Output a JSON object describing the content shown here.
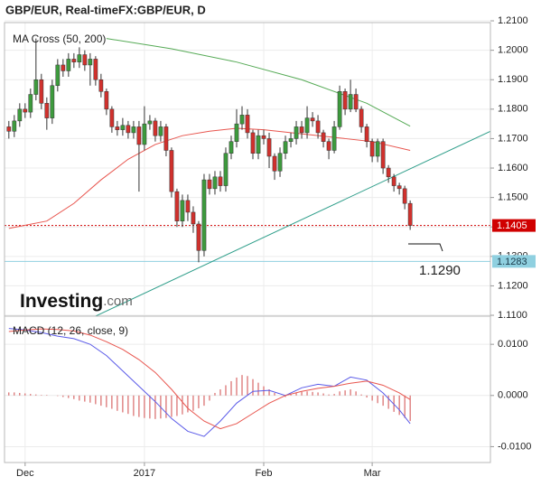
{
  "header": {
    "title": "GBP/EUR, Real-timeFX:GBP/EUR, D",
    "logo": [
      "Investing",
      ".com"
    ]
  },
  "chart_data": [
    {
      "type": "candlestick",
      "title": "MA Cross (50, 200)",
      "up_color": "#3d9a3d",
      "down_color": "#d0312d",
      "xlim": [
        -0.8,
        88.8
      ],
      "ylim": [
        1.1097,
        1.2094
      ],
      "yticks": [
        {
          "value": 1.11,
          "label": "1.1100"
        },
        {
          "value": 1.12,
          "label": "1.1200"
        },
        {
          "value": 1.13,
          "label": "1.1300"
        },
        {
          "value": 1.14,
          "label": "1.1400"
        },
        {
          "value": 1.15,
          "label": "1.1500"
        },
        {
          "value": 1.16,
          "label": "1.1600"
        },
        {
          "value": 1.17,
          "label": "1.1700"
        },
        {
          "value": 1.18,
          "label": "1.1800"
        },
        {
          "value": 1.19,
          "label": "1.1900"
        },
        {
          "value": 1.2,
          "label": "1.2000"
        },
        {
          "value": 1.21,
          "label": "1.2100"
        }
      ],
      "grid": true,
      "x": [
        0,
        1,
        2,
        3,
        4,
        5,
        6,
        7,
        8,
        9,
        10,
        11,
        12,
        13,
        14,
        15,
        16,
        17,
        18,
        19,
        20,
        21,
        22,
        23,
        24,
        25,
        26,
        27,
        28,
        29,
        30,
        31,
        32,
        33,
        34,
        35,
        36,
        37,
        38,
        39,
        40,
        41,
        42,
        43,
        44,
        45,
        46,
        47,
        48,
        49,
        50,
        51,
        52,
        53,
        54,
        55,
        56,
        57,
        58,
        59,
        60,
        61,
        62,
        63,
        64,
        65,
        66,
        67,
        68,
        69,
        70,
        71,
        72,
        73,
        74
      ],
      "open": [
        1.174,
        1.1725,
        1.176,
        1.18,
        1.179,
        1.185,
        1.19,
        1.182,
        1.177,
        1.188,
        1.195,
        1.193,
        1.197,
        1.196,
        1.1985,
        1.195,
        1.197,
        1.19,
        1.186,
        1.18,
        1.174,
        1.173,
        1.1745,
        1.172,
        1.174,
        1.168,
        1.175,
        1.176,
        1.171,
        1.174,
        1.166,
        1.152,
        1.142,
        1.149,
        1.145,
        1.141,
        1.132,
        1.156,
        1.153,
        1.157,
        1.154,
        1.165,
        1.169,
        1.175,
        1.178,
        1.172,
        1.165,
        1.171,
        1.17,
        1.164,
        1.159,
        1.165,
        1.169,
        1.17,
        1.174,
        1.172,
        1.177,
        1.176,
        1.172,
        1.169,
        1.166,
        1.174,
        1.186,
        1.18,
        1.185,
        1.18,
        1.174,
        1.169,
        1.164,
        1.169,
        1.16,
        1.157,
        1.154,
        1.153,
        1.148
      ],
      "high": [
        1.176,
        1.178,
        1.182,
        1.182,
        1.187,
        1.204,
        1.192,
        1.184,
        1.19,
        1.197,
        1.197,
        1.199,
        1.199,
        1.201,
        1.2,
        1.199,
        1.198,
        1.192,
        1.187,
        1.181,
        1.176,
        1.177,
        1.176,
        1.176,
        1.176,
        1.181,
        1.178,
        1.177,
        1.176,
        1.175,
        1.167,
        1.153,
        1.151,
        1.151,
        1.147,
        1.142,
        1.158,
        1.158,
        1.159,
        1.159,
        1.167,
        1.171,
        1.18,
        1.181,
        1.18,
        1.173,
        1.173,
        1.173,
        1.172,
        1.165,
        1.167,
        1.171,
        1.172,
        1.176,
        1.176,
        1.181,
        1.179,
        1.178,
        1.173,
        1.17,
        1.176,
        1.188,
        1.187,
        1.19,
        1.187,
        1.181,
        1.175,
        1.17,
        1.17,
        1.17,
        1.161,
        1.158,
        1.155,
        1.154,
        1.149
      ],
      "low": [
        1.17,
        1.1705,
        1.174,
        1.177,
        1.177,
        1.183,
        1.18,
        1.173,
        1.175,
        1.186,
        1.191,
        1.191,
        1.194,
        1.194,
        1.193,
        1.188,
        1.188,
        1.184,
        1.178,
        1.172,
        1.171,
        1.171,
        1.17,
        1.17,
        1.152,
        1.166,
        1.173,
        1.169,
        1.169,
        1.164,
        1.15,
        1.14,
        1.14,
        1.142,
        1.138,
        1.128,
        1.13,
        1.151,
        1.151,
        1.152,
        1.152,
        1.163,
        1.167,
        1.173,
        1.17,
        1.163,
        1.163,
        1.168,
        1.16,
        1.156,
        1.157,
        1.163,
        1.167,
        1.168,
        1.17,
        1.17,
        1.174,
        1.17,
        1.167,
        1.163,
        1.165,
        1.173,
        1.178,
        1.179,
        1.179,
        1.172,
        1.167,
        1.162,
        1.162,
        1.158,
        1.155,
        1.152,
        1.151,
        1.146,
        1.139
      ],
      "close": [
        1.1725,
        1.176,
        1.18,
        1.179,
        1.185,
        1.19,
        1.182,
        1.177,
        1.188,
        1.195,
        1.193,
        1.197,
        1.196,
        1.1985,
        1.195,
        1.197,
        1.19,
        1.186,
        1.18,
        1.174,
        1.173,
        1.1745,
        1.172,
        1.174,
        1.168,
        1.175,
        1.176,
        1.171,
        1.174,
        1.166,
        1.152,
        1.142,
        1.149,
        1.145,
        1.141,
        1.132,
        1.156,
        1.153,
        1.157,
        1.154,
        1.165,
        1.169,
        1.175,
        1.178,
        1.172,
        1.165,
        1.171,
        1.17,
        1.164,
        1.159,
        1.165,
        1.169,
        1.17,
        1.174,
        1.172,
        1.177,
        1.176,
        1.172,
        1.169,
        1.166,
        1.174,
        1.186,
        1.18,
        1.185,
        1.18,
        1.174,
        1.169,
        1.164,
        1.169,
        1.16,
        1.157,
        1.154,
        1.153,
        1.148,
        1.1405
      ],
      "overlays": [
        {
          "color": "#e8554e",
          "x": [
            0,
            7,
            12,
            17,
            22,
            27,
            32,
            37,
            42,
            47,
            52,
            57,
            62,
            67,
            74
          ],
          "values": [
            1.1395,
            1.142,
            1.148,
            1.156,
            1.163,
            1.168,
            1.171,
            1.1725,
            1.1735,
            1.173,
            1.172,
            1.171,
            1.17,
            1.169,
            1.166
          ]
        },
        {
          "color": "#55aa55",
          "x": [
            18,
            30,
            42,
            54,
            66,
            74
          ],
          "values": [
            1.204,
            1.2005,
            1.196,
            1.19,
            1.182,
            1.1742
          ]
        },
        {
          "color": "#2e9e8a",
          "x": [
            14,
            88.8
          ],
          "values": [
            1.108,
            1.1725
          ]
        }
      ],
      "hlines": [
        {
          "value": 1.1405,
          "color": "#d00000",
          "dash": "2,2",
          "label_color": "#ffffff"
        },
        {
          "value": 1.1283,
          "color": "#8fd0e0",
          "dash": "",
          "label_color": "#1a3a4a"
        }
      ],
      "annotations": [
        {
          "text": "1.1290"
        }
      ]
    },
    {
      "type": "macd",
      "title": "MACD (12, 26, close, 9)",
      "xlim": [
        -0.8,
        88.8
      ],
      "ylim": [
        -0.0131,
        0.0155
      ],
      "yticks": [
        {
          "value": 0.01,
          "label": "0.0100"
        },
        {
          "value": 0,
          "label": "0.0000"
        },
        {
          "value": -0.01,
          "label": "-0.0100"
        }
      ],
      "xticks": [
        {
          "value": 3,
          "label": "Dec"
        },
        {
          "value": 25,
          "label": "2017"
        },
        {
          "value": 47,
          "label": "Feb"
        },
        {
          "value": 67,
          "label": "Mar"
        }
      ],
      "histogram": {
        "color": "#d04a4a",
        "values": [
          0.0006,
          0.0006,
          0.0005,
          0.0004,
          0.0003,
          0.0002,
          0.0001,
          0.0001,
          0,
          -0.0001,
          -0.0003,
          -0.0005,
          -0.0007,
          -0.001,
          -0.0012,
          -0.0014,
          -0.0017,
          -0.002,
          -0.0023,
          -0.0026,
          -0.003,
          -0.0033,
          -0.0036,
          -0.004,
          -0.0042,
          -0.0044,
          -0.0045,
          -0.0046,
          -0.0045,
          -0.0044,
          -0.0042,
          -0.004,
          -0.0037,
          -0.0033,
          -0.003,
          -0.0025,
          -0.002,
          -0.001,
          0.0005,
          0.0012,
          0.002,
          0.0028,
          0.0035,
          0.004,
          0.0038,
          0.0032,
          0.0025,
          0.0018,
          0.0012,
          0.0005,
          0,
          -0.0003,
          0.0002,
          0.0005,
          0.0007,
          0.0008,
          0.0007,
          0.0006,
          0.0004,
          0.0002,
          0.0003,
          0.0008,
          0.001,
          0.0012,
          0.0008,
          0.0002,
          -0.0004,
          -0.001,
          -0.0015,
          -0.002,
          -0.0026,
          -0.0032,
          -0.0038,
          -0.0044,
          -0.005
        ]
      },
      "series": [
        {
          "color": "#5a5ae8",
          "x": [
            0,
            3,
            6,
            9,
            12,
            15,
            18,
            21,
            24,
            27,
            30,
            33,
            36,
            39,
            42,
            45,
            48,
            51,
            54,
            57,
            60,
            63,
            66,
            69,
            72,
            74
          ],
          "values": [
            0.0131,
            0.0128,
            0.0123,
            0.0116,
            0.0111,
            0.01,
            0.0078,
            0.0048,
            0.0018,
            -0.0012,
            -0.0045,
            -0.007,
            -0.008,
            -0.005,
            -0.0015,
            0.0008,
            0.001,
            0,
            0.0015,
            0.0022,
            0.0018,
            0.0036,
            0.003,
            0.0005,
            -0.0028,
            -0.0055
          ]
        },
        {
          "color": "#e8554e",
          "x": [
            0,
            3,
            6,
            9,
            12,
            15,
            18,
            21,
            24,
            27,
            30,
            33,
            36,
            39,
            42,
            45,
            48,
            51,
            54,
            57,
            60,
            63,
            66,
            69,
            72,
            74
          ],
          "values": [
            0.0125,
            0.0128,
            0.013,
            0.0129,
            0.0126,
            0.0118,
            0.0105,
            0.009,
            0.007,
            0.0045,
            0.0012,
            -0.0025,
            -0.005,
            -0.0065,
            -0.0055,
            -0.0035,
            -0.0015,
            0,
            0.0008,
            0.0014,
            0.0018,
            0.0024,
            0.0028,
            0.002,
            0.0005,
            -0.0008
          ]
        }
      ]
    }
  ]
}
